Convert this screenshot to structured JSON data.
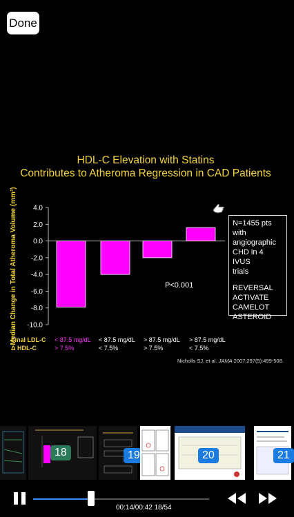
{
  "nav": {
    "done_label": "Done"
  },
  "slide": {
    "title_line1": "HDL-C Elevation with Statins",
    "title_line2": "Contributes to Atheroma Regression in CAD Patients",
    "legend_lines": [
      "N=1455 pts",
      "with",
      "angiographic",
      "CHD in 4 IVUS",
      "trials"
    ],
    "trial_lines": [
      "REVERSAL",
      "ACTIVATE",
      "CAMELOT",
      "ASTEROID"
    ],
    "pvalue": "P<0.001",
    "citation_pre": "Nicholls SJ, et al. ",
    "citation_journal": "JAMA",
    "citation_post": " 2007;297(5):499-508.",
    "row_labels": {
      "ldl": "Final LDL-C",
      "hdl": "Δ HDL-C"
    },
    "groups": [
      {
        "ldl": "< 87.5 mg/dL",
        "hdl": "> 7.5%",
        "highlight": true
      },
      {
        "ldl": "< 87.5 mg/dL",
        "hdl": "< 7.5%",
        "highlight": false
      },
      {
        "ldl": "> 87.5 mg/dL",
        "hdl": "> 7.5%",
        "highlight": false
      },
      {
        "ldl": "> 87.5 mg/dL",
        "hdl": "< 7.5%",
        "highlight": false
      }
    ]
  },
  "chart_data": {
    "type": "bar",
    "categories": [
      "<87.5 / >7.5%",
      "<87.5 / <7.5%",
      ">87.5 / >7.5%",
      ">87.5 / <7.5%"
    ],
    "values": [
      -7.9,
      -4.0,
      -2.0,
      1.6
    ],
    "ylabel": "Median Change in Total Atheroma Volume (mm³)",
    "ylim": [
      -10.0,
      4.0
    ],
    "yticks": [
      "4.0",
      "2.0",
      "0.0",
      "-2.0",
      "-4.0",
      "-6.0",
      "-8.0",
      "-10.0"
    ],
    "ytick_values": [
      4,
      2,
      0,
      -2,
      -4,
      -6,
      -8,
      -10
    ],
    "bar_color": "#ff00ff"
  },
  "filmstrip": {
    "thumbs": [
      {
        "num": "18",
        "color": "#2c7a5a"
      },
      {
        "num": "19",
        "color": "#1a7be0"
      },
      {
        "num": "20",
        "color": "#1a7be0"
      },
      {
        "num": "21",
        "color": "#1a7be0"
      }
    ]
  },
  "player": {
    "time_label": "00:14/00:42 18/54",
    "progress": 0.33
  },
  "colors": {
    "accent": "#f2d33a",
    "highlight": "#ff33ff",
    "progress": "#3a8bff"
  }
}
